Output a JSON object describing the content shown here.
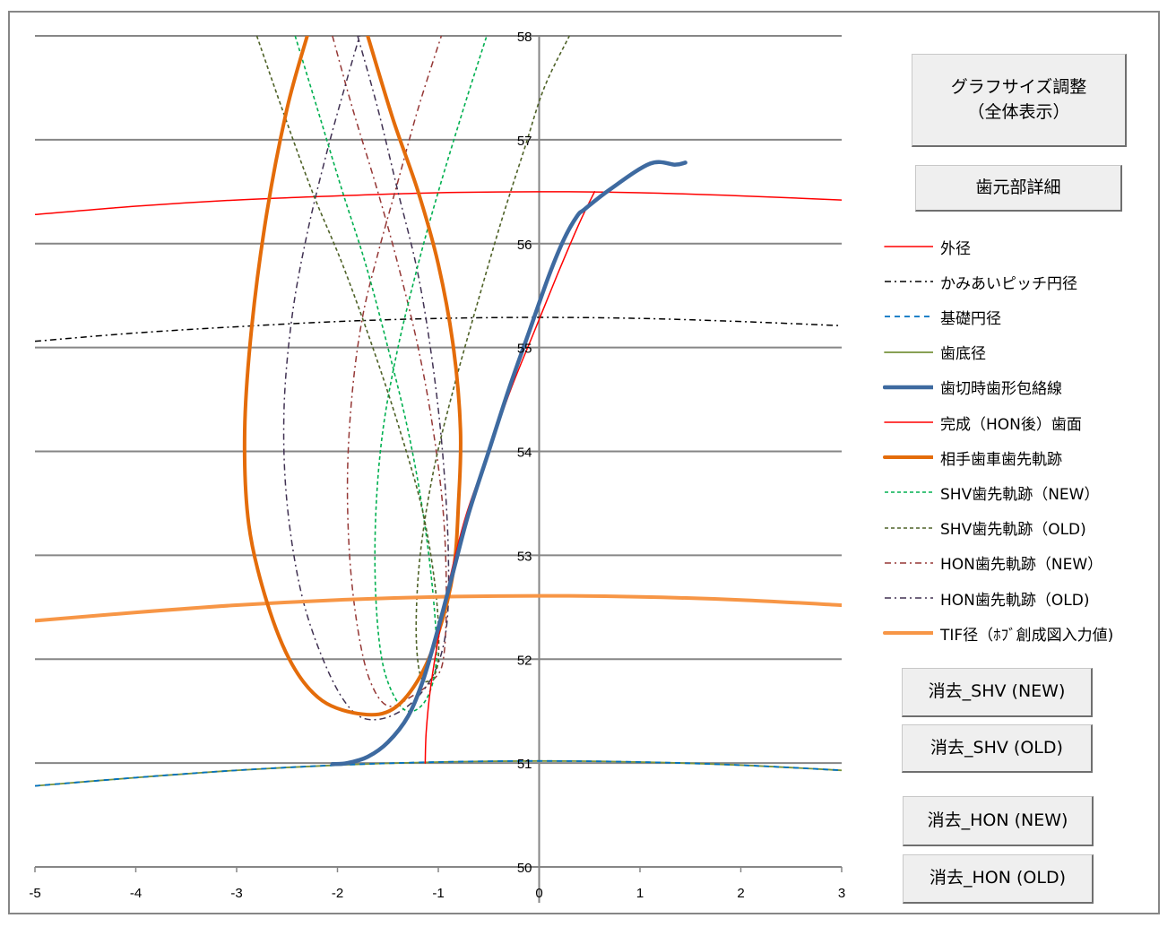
{
  "buttons": {
    "graph_size": "グラフサイズ調整\n（全体表示）",
    "root_detail": "歯元部詳細",
    "clear_shv_new": "消去_SHV (NEW)",
    "clear_shv_old": "消去_SHV (OLD)",
    "clear_hon_new": "消去_HON (NEW)",
    "clear_hon_old": "消去_HON (OLD)"
  },
  "legend": [
    {
      "label": "外径",
      "color": "#ff0000",
      "width": 1.5,
      "dash": ""
    },
    {
      "label": "かみあいピッチ円径",
      "color": "#000000",
      "width": 1.5,
      "dash": "7 4 2 4"
    },
    {
      "label": "基礎円径",
      "color": "#0070c0",
      "width": 1.8,
      "dash": "6 5"
    },
    {
      "label": "歯底径",
      "color": "#77933c",
      "width": 1.8,
      "dash": ""
    },
    {
      "label": "歯切時歯形包絡線",
      "color": "#3e6aa0",
      "width": 4.5,
      "dash": ""
    },
    {
      "label": "完成（HON後）歯面",
      "color": "#ff0000",
      "width": 1.5,
      "dash": ""
    },
    {
      "label": "相手歯車歯先軌跡",
      "color": "#e46c0a",
      "width": 4,
      "dash": ""
    },
    {
      "label": "SHV歯先軌跡（NEW）",
      "color": "#00b050",
      "width": 1.6,
      "dash": "4 3"
    },
    {
      "label": "SHV歯先軌跡（OLD)",
      "color": "#4f6228",
      "width": 1.6,
      "dash": "4 3"
    },
    {
      "label": "HON歯先軌跡（NEW）",
      "color": "#953735",
      "width": 1.5,
      "dash": "7 4 2 4"
    },
    {
      "label": "HON歯先軌跡（OLD)",
      "color": "#403152",
      "width": 1.5,
      "dash": "7 4 2 4"
    },
    {
      "label": "TIF径（ﾎﾌﾞ創成図入力値)",
      "color": "#f79646",
      "width": 4,
      "dash": ""
    }
  ],
  "chart_data": {
    "type": "scatter",
    "title": "",
    "xlabel": "",
    "ylabel": "",
    "xlim": [
      -5,
      3
    ],
    "ylim": [
      50,
      58
    ],
    "x_ticks": [
      -5,
      -4,
      -3,
      -2,
      -1,
      0,
      1,
      2,
      3
    ],
    "y_ticks": [
      50,
      51,
      52,
      53,
      54,
      55,
      56,
      57,
      58
    ],
    "grid": {
      "horizontal": true,
      "vertical": false
    },
    "legend_position": "right",
    "series": [
      {
        "name": "外径",
        "points": [
          [
            -5,
            56.28
          ],
          [
            -4,
            56.36
          ],
          [
            -3,
            56.42
          ],
          [
            -2,
            56.46
          ],
          [
            -1,
            56.49
          ],
          [
            0,
            56.5
          ],
          [
            1,
            56.49
          ],
          [
            2,
            56.46
          ],
          [
            3,
            56.42
          ]
        ]
      },
      {
        "name": "かみあいピッチ円径",
        "points": [
          [
            -5,
            55.06
          ],
          [
            -4,
            55.14
          ],
          [
            -3,
            55.2
          ],
          [
            -2,
            55.25
          ],
          [
            -1,
            55.28
          ],
          [
            0,
            55.29
          ],
          [
            1,
            55.28
          ],
          [
            2,
            55.25
          ],
          [
            3,
            55.21
          ]
        ]
      },
      {
        "name": "基礎円径",
        "points": [
          [
            -5,
            50.78
          ],
          [
            -4,
            50.86
          ],
          [
            -3,
            50.93
          ],
          [
            -2,
            50.98
          ],
          [
            -1,
            51.01
          ],
          [
            0,
            51.02
          ],
          [
            1,
            51.01
          ],
          [
            2,
            50.98
          ],
          [
            3,
            50.93
          ]
        ]
      },
      {
        "name": "歯底径",
        "points": [
          [
            -5,
            50.78
          ],
          [
            -4,
            50.86
          ],
          [
            -3,
            50.93
          ],
          [
            -2,
            50.98
          ],
          [
            -1,
            51.01
          ],
          [
            0,
            51.02
          ],
          [
            1,
            51.01
          ],
          [
            2,
            50.98
          ],
          [
            3,
            50.93
          ]
        ]
      },
      {
        "name": "歯切時歯形包絡線",
        "points": [
          [
            -2.05,
            50.99
          ],
          [
            -1.9,
            51.0
          ],
          [
            -1.7,
            51.06
          ],
          [
            -1.5,
            51.2
          ],
          [
            -1.3,
            51.45
          ],
          [
            -1.15,
            51.8
          ],
          [
            -1.0,
            52.3
          ],
          [
            -0.85,
            52.85
          ],
          [
            -0.7,
            53.4
          ],
          [
            -0.5,
            54.0
          ],
          [
            -0.3,
            54.6
          ],
          [
            -0.1,
            55.15
          ],
          [
            0.1,
            55.7
          ],
          [
            0.25,
            56.05
          ],
          [
            0.38,
            56.27
          ],
          [
            0.45,
            56.33
          ],
          [
            0.7,
            56.52
          ],
          [
            1.1,
            56.77
          ],
          [
            1.35,
            56.76
          ],
          [
            1.45,
            56.78
          ]
        ]
      },
      {
        "name": "完成（HON後）歯面",
        "points": [
          [
            -1.13,
            51.0
          ],
          [
            -1.12,
            51.3
          ],
          [
            -1.08,
            51.7
          ],
          [
            -1.0,
            52.2
          ],
          [
            -0.88,
            52.8
          ],
          [
            -0.72,
            53.4
          ],
          [
            -0.5,
            54.0
          ],
          [
            -0.28,
            54.6
          ],
          [
            -0.05,
            55.15
          ],
          [
            0.18,
            55.7
          ],
          [
            0.4,
            56.2
          ],
          [
            0.55,
            56.5
          ]
        ]
      },
      {
        "name": "相手歯車歯先軌跡",
        "points": [
          [
            -2.3,
            58.0
          ],
          [
            -2.5,
            57.3
          ],
          [
            -2.7,
            56.3
          ],
          [
            -2.85,
            55.2
          ],
          [
            -2.92,
            54.2
          ],
          [
            -2.88,
            53.3
          ],
          [
            -2.7,
            52.55
          ],
          [
            -2.45,
            51.95
          ],
          [
            -2.15,
            51.6
          ],
          [
            -1.75,
            51.47
          ],
          [
            -1.45,
            51.52
          ],
          [
            -1.2,
            51.8
          ],
          [
            -1.0,
            52.25
          ],
          [
            -0.85,
            52.85
          ],
          [
            -0.8,
            53.5
          ],
          [
            -0.78,
            54.2
          ],
          [
            -0.85,
            55.0
          ],
          [
            -1.0,
            55.8
          ],
          [
            -1.2,
            56.5
          ],
          [
            -1.45,
            57.2
          ],
          [
            -1.7,
            58.0
          ]
        ]
      },
      {
        "name": "SHV歯先軌跡（NEW）",
        "points": [
          [
            -2.42,
            58.0
          ],
          [
            -2.2,
            57.3
          ],
          [
            -1.95,
            56.5
          ],
          [
            -1.72,
            55.8
          ],
          [
            -1.5,
            55.0
          ],
          [
            -1.3,
            54.2
          ],
          [
            -1.15,
            53.4
          ],
          [
            -1.05,
            52.6
          ],
          [
            -1.02,
            52.0
          ],
          [
            -1.1,
            51.65
          ],
          [
            -1.25,
            51.5
          ],
          [
            -1.4,
            51.58
          ],
          [
            -1.55,
            51.95
          ],
          [
            -1.62,
            52.6
          ],
          [
            -1.62,
            53.4
          ],
          [
            -1.55,
            54.2
          ],
          [
            -1.4,
            55.0
          ],
          [
            -1.2,
            55.8
          ],
          [
            -1.0,
            56.5
          ],
          [
            -0.75,
            57.3
          ],
          [
            -0.52,
            58.0
          ]
        ]
      },
      {
        "name": "SHV歯先軌跡（OLD)",
        "points": [
          [
            -2.8,
            58.0
          ],
          [
            -2.55,
            57.3
          ],
          [
            -2.25,
            56.5
          ],
          [
            -1.95,
            55.8
          ],
          [
            -1.65,
            55.0
          ],
          [
            -1.38,
            54.2
          ],
          [
            -1.15,
            53.4
          ],
          [
            -1.02,
            52.6
          ],
          [
            -1.0,
            52.0
          ],
          [
            -1.08,
            51.8
          ],
          [
            -1.18,
            51.85
          ],
          [
            -1.22,
            52.3
          ],
          [
            -1.18,
            53.0
          ],
          [
            -1.05,
            53.8
          ],
          [
            -0.85,
            54.6
          ],
          [
            -0.62,
            55.4
          ],
          [
            -0.38,
            56.2
          ],
          [
            -0.15,
            56.9
          ],
          [
            0.05,
            57.5
          ],
          [
            0.3,
            58.0
          ]
        ]
      },
      {
        "name": "HON歯先軌跡（NEW）",
        "points": [
          [
            -2.05,
            58.0
          ],
          [
            -1.85,
            57.3
          ],
          [
            -1.6,
            56.5
          ],
          [
            -1.4,
            55.8
          ],
          [
            -1.2,
            55.0
          ],
          [
            -1.05,
            54.2
          ],
          [
            -0.95,
            53.4
          ],
          [
            -0.92,
            52.6
          ],
          [
            -0.95,
            52.0
          ],
          [
            -1.05,
            51.8
          ],
          [
            -1.25,
            51.65
          ],
          [
            -1.5,
            51.55
          ],
          [
            -1.68,
            51.8
          ],
          [
            -1.8,
            52.3
          ],
          [
            -1.88,
            53.0
          ],
          [
            -1.9,
            53.8
          ],
          [
            -1.85,
            54.6
          ],
          [
            -1.75,
            55.3
          ],
          [
            -1.6,
            55.9
          ],
          [
            -1.4,
            56.6
          ],
          [
            -1.2,
            57.3
          ],
          [
            -0.97,
            58.0
          ]
        ]
      },
      {
        "name": "HON歯先軌跡（OLD)",
        "points": [
          [
            -1.8,
            58.0
          ],
          [
            -1.6,
            57.3
          ],
          [
            -1.4,
            56.5
          ],
          [
            -1.2,
            55.7
          ],
          [
            -1.05,
            54.8
          ],
          [
            -0.95,
            53.9
          ],
          [
            -0.9,
            53.0
          ],
          [
            -0.92,
            52.3
          ],
          [
            -1.05,
            51.85
          ],
          [
            -1.3,
            51.55
          ],
          [
            -1.6,
            51.42
          ],
          [
            -1.85,
            51.5
          ],
          [
            -2.1,
            51.9
          ],
          [
            -2.35,
            52.6
          ],
          [
            -2.5,
            53.5
          ],
          [
            -2.53,
            54.4
          ],
          [
            -2.45,
            55.3
          ],
          [
            -2.3,
            56.1
          ],
          [
            -2.1,
            56.9
          ],
          [
            -1.9,
            57.6
          ],
          [
            -1.78,
            58.0
          ]
        ]
      },
      {
        "name": "TIF径（ﾎﾌﾞ創成図入力値)",
        "points": [
          [
            -5,
            52.37
          ],
          [
            -4,
            52.45
          ],
          [
            -3,
            52.52
          ],
          [
            -2,
            52.57
          ],
          [
            -1,
            52.6
          ],
          [
            0,
            52.61
          ],
          [
            1,
            52.6
          ],
          [
            2,
            52.57
          ],
          [
            3,
            52.52
          ]
        ]
      }
    ]
  }
}
